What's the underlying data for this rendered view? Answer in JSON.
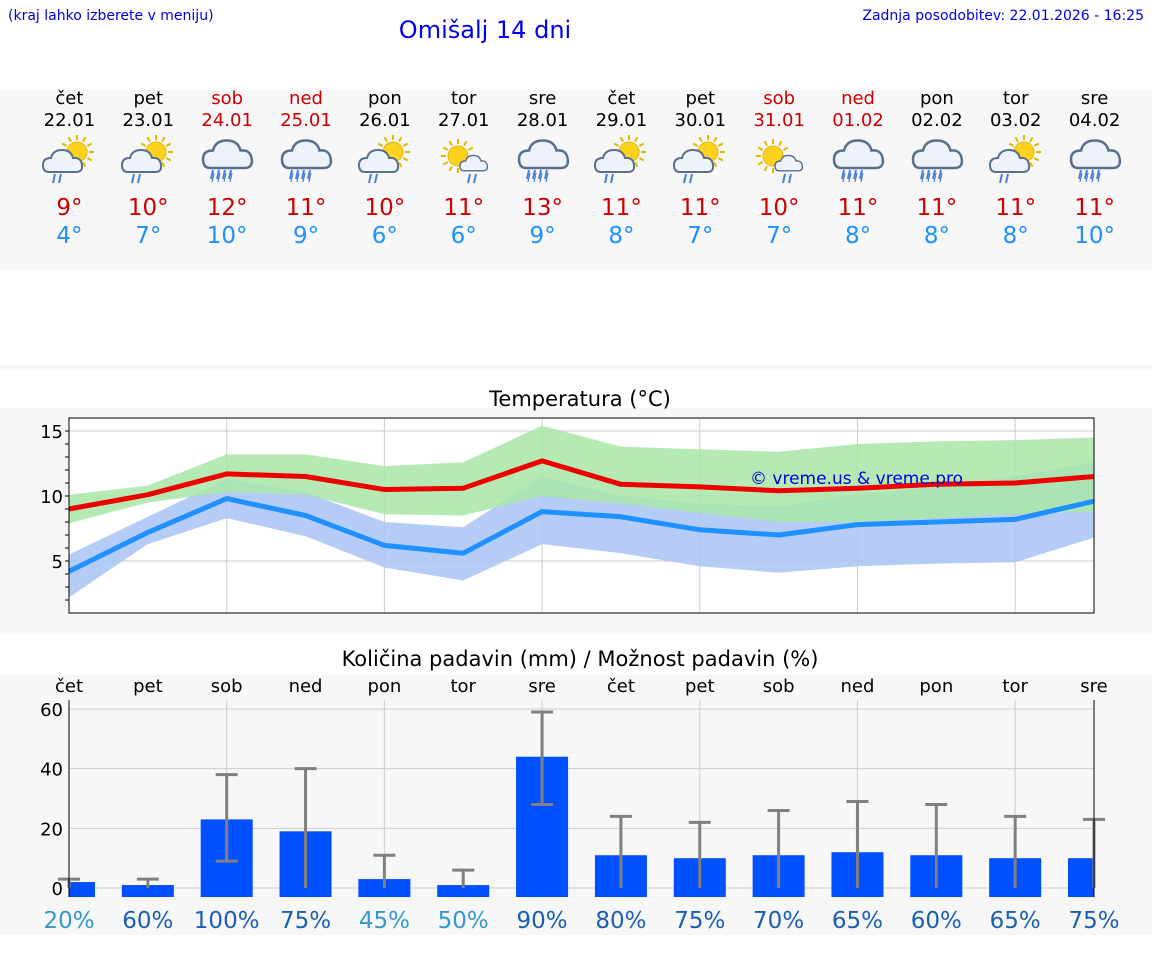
{
  "header": {
    "note": "(kraj lahko izberete v meniju)",
    "title": "Omišalj 14 dni",
    "updated": "Zadnja posodobitev: 22.01.2026 - 16:25"
  },
  "days": [
    {
      "name": "čet",
      "date": "22.01",
      "weekend": false,
      "icon": "sun-cloud-rain-icon",
      "max": "9°",
      "min": "4°"
    },
    {
      "name": "pet",
      "date": "23.01",
      "weekend": false,
      "icon": "sun-cloud-rain-icon",
      "max": "10°",
      "min": "7°"
    },
    {
      "name": "sob",
      "date": "24.01",
      "weekend": true,
      "icon": "cloud-rain-icon",
      "max": "12°",
      "min": "10°"
    },
    {
      "name": "ned",
      "date": "25.01",
      "weekend": true,
      "icon": "cloud-rain-icon",
      "max": "11°",
      "min": "9°"
    },
    {
      "name": "pon",
      "date": "26.01",
      "weekend": false,
      "icon": "sun-cloud-rain-icon",
      "max": "10°",
      "min": "6°"
    },
    {
      "name": "tor",
      "date": "27.01",
      "weekend": false,
      "icon": "sun-small-cloud-rain-icon",
      "max": "11°",
      "min": "6°"
    },
    {
      "name": "sre",
      "date": "28.01",
      "weekend": false,
      "icon": "cloud-rain-icon",
      "max": "13°",
      "min": "9°"
    },
    {
      "name": "čet",
      "date": "29.01",
      "weekend": false,
      "icon": "sun-cloud-rain-icon",
      "max": "11°",
      "min": "8°"
    },
    {
      "name": "pet",
      "date": "30.01",
      "weekend": false,
      "icon": "sun-cloud-rain-icon",
      "max": "11°",
      "min": "7°"
    },
    {
      "name": "sob",
      "date": "31.01",
      "weekend": true,
      "icon": "sun-small-cloud-rain-icon",
      "max": "10°",
      "min": "7°"
    },
    {
      "name": "ned",
      "date": "01.02",
      "weekend": true,
      "icon": "cloud-rain-icon",
      "max": "11°",
      "min": "8°"
    },
    {
      "name": "pon",
      "date": "02.02",
      "weekend": false,
      "icon": "cloud-rain-icon",
      "max": "11°",
      "min": "8°"
    },
    {
      "name": "tor",
      "date": "03.02",
      "weekend": false,
      "icon": "sun-cloud-rain-icon",
      "max": "11°",
      "min": "8°"
    },
    {
      "name": "sre",
      "date": "04.02",
      "weekend": false,
      "icon": "cloud-rain-icon",
      "max": "11°",
      "min": "10°"
    }
  ],
  "colors": {
    "max_line": "#ee0000",
    "min_line": "#1e90ff",
    "max_band": "#a8e6a8",
    "min_band": "#a8c4f5",
    "bar": "#0050ff",
    "error": "#808080",
    "pct_low": "#3399cc",
    "pct_high": "#1a5fb4"
  },
  "chart_data": [
    {
      "type": "line",
      "title": "Temperatura (°C)",
      "watermark": "© vreme.us & vreme.pro",
      "x": [
        0,
        1,
        2,
        3,
        4,
        5,
        6,
        7,
        8,
        9,
        10,
        11,
        12,
        13
      ],
      "ylim": [
        1,
        16
      ],
      "yticks": [
        5,
        10,
        15
      ],
      "series": [
        {
          "name": "max",
          "values": [
            9.0,
            10.1,
            11.7,
            11.5,
            10.5,
            10.6,
            12.7,
            10.9,
            10.7,
            10.4,
            10.6,
            10.9,
            11.0,
            11.5
          ],
          "band_low": [
            7.9,
            9.5,
            10.3,
            10.1,
            8.6,
            8.5,
            10.0,
            9.4,
            8.7,
            8.0,
            8.0,
            8.3,
            8.6,
            8.8
          ],
          "band_high": [
            10.1,
            10.8,
            13.2,
            13.2,
            12.3,
            12.6,
            15.4,
            13.8,
            13.6,
            13.4,
            14.0,
            14.2,
            14.3,
            14.5
          ]
        },
        {
          "name": "min",
          "values": [
            4.2,
            7.2,
            9.8,
            8.5,
            6.2,
            5.6,
            8.8,
            8.4,
            7.4,
            7.0,
            7.8,
            8.0,
            8.2,
            9.6
          ],
          "band_low": [
            2.2,
            6.3,
            8.3,
            6.9,
            4.5,
            3.5,
            6.3,
            5.6,
            4.6,
            4.1,
            4.6,
            4.8,
            4.9,
            6.8
          ],
          "band_high": [
            5.5,
            8.4,
            11.3,
            10.3,
            8.0,
            7.6,
            11.5,
            10.0,
            9.4,
            9.2,
            10.1,
            10.7,
            11.5,
            12.6
          ]
        }
      ]
    },
    {
      "type": "bar",
      "title": "Količina padavin (mm) / Možnost padavin (%)",
      "categories": [
        "čet",
        "pet",
        "sob",
        "ned",
        "pon",
        "tor",
        "sre",
        "čet",
        "pet",
        "sob",
        "ned",
        "pon",
        "tor",
        "sre"
      ],
      "values": [
        2,
        1,
        23,
        19,
        3,
        1,
        44,
        11,
        10,
        11,
        12,
        11,
        10,
        10
      ],
      "error_low": [
        0,
        0,
        9,
        0,
        0,
        0,
        28,
        0,
        0,
        0,
        0,
        0,
        0,
        0
      ],
      "error_high": [
        3,
        3,
        38,
        40,
        11,
        6,
        59,
        24,
        22,
        26,
        29,
        28,
        24,
        23
      ],
      "ylim": [
        -3,
        63
      ],
      "yticks": [
        0,
        20,
        40,
        60
      ],
      "probability": [
        "20%",
        "60%",
        "100%",
        "75%",
        "45%",
        "50%",
        "90%",
        "80%",
        "75%",
        "70%",
        "65%",
        "60%",
        "65%",
        "75%"
      ]
    }
  ]
}
